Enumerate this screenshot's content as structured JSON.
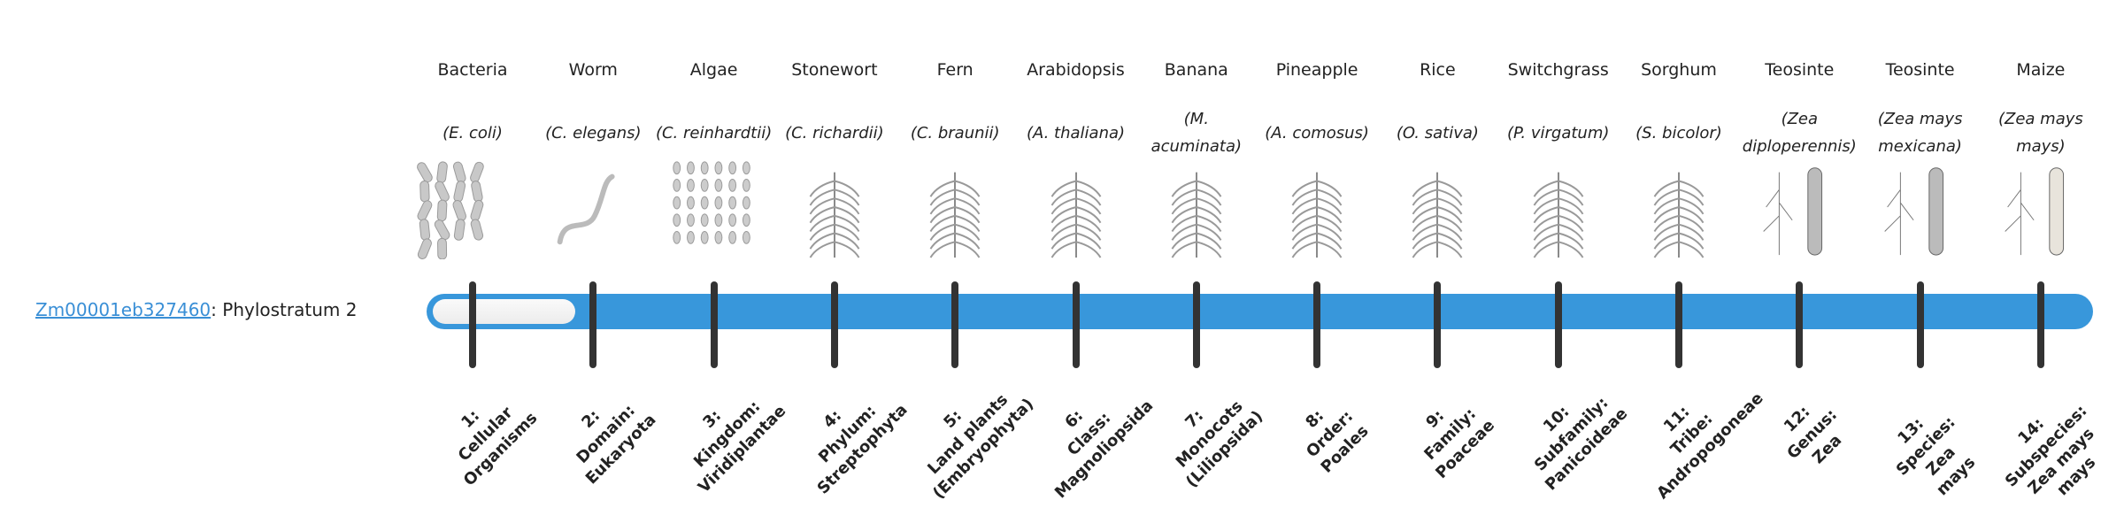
{
  "gene": {
    "id": "Zm00001eb327460",
    "separator": ":",
    "text": "Phylostratum 2",
    "phylostratum": 2,
    "total_strata": 14
  },
  "colors": {
    "bar": "#3897db",
    "fill": "#f2f2f2",
    "tick": "#333333",
    "link": "#3a8fd6"
  },
  "columns": [
    {
      "name": "Bacteria",
      "species": "(E. coli)",
      "icon": "bacteria-icon",
      "label": [
        "1:",
        "Cellular",
        "Organisms"
      ]
    },
    {
      "name": "Worm",
      "species": "(C. elegans)",
      "icon": "worm-icon",
      "label": [
        "2:",
        "Domain:",
        "Eukaryota"
      ]
    },
    {
      "name": "Algae",
      "species": "(C. reinhardtii)",
      "icon": "algae-icon",
      "label": [
        "3:",
        "Kingdom:",
        "Viridiplantae"
      ]
    },
    {
      "name": "Stonewort",
      "species": "(C. richardii)",
      "icon": "stonewort-icon",
      "label": [
        "4:",
        "Phylum:",
        "Streptophyta"
      ]
    },
    {
      "name": "Fern",
      "species": "(C. braunii)",
      "icon": "fern-icon",
      "label": [
        "5:",
        "Land plants",
        "(Embryophyta)"
      ]
    },
    {
      "name": "Arabidopsis",
      "species": "(A. thaliana)",
      "icon": "arabidopsis-icon",
      "label": [
        "6:",
        "Class:",
        "Magnoliopsida"
      ]
    },
    {
      "name": "Banana",
      "species": "(M. acuminata)",
      "icon": "banana-icon",
      "label": [
        "7:",
        "Monocots",
        "(Liliopsida)"
      ]
    },
    {
      "name": "Pineapple",
      "species": "(A. comosus)",
      "icon": "pineapple-icon",
      "label": [
        "8:",
        "Order:",
        "Poales"
      ]
    },
    {
      "name": "Rice",
      "species": "(O. sativa)",
      "icon": "rice-icon",
      "label": [
        "9:",
        "Family:",
        "Poaceae"
      ]
    },
    {
      "name": "Switchgrass",
      "species": "(P. virgatum)",
      "icon": "switchgrass-icon",
      "label": [
        "10:",
        "Subfamily:",
        "Panicoideae"
      ]
    },
    {
      "name": "Sorghum",
      "species": "(S. bicolor)",
      "icon": "sorghum-icon",
      "label": [
        "11:",
        "Tribe:",
        "Andropogoneae"
      ]
    },
    {
      "name": "Teosinte",
      "species": "(Zea diploperennis)",
      "icon": "teosinte-icon",
      "label": [
        "12:",
        "Genus:",
        "Zea"
      ]
    },
    {
      "name": "Teosinte",
      "species": "(Zea mays mexicana)",
      "icon": "teosinte-icon",
      "label": [
        "13:",
        "Species:",
        "Zea",
        "mays"
      ]
    },
    {
      "name": "Maize",
      "species": "(Zea mays mays)",
      "icon": "maize-icon",
      "label": [
        "14:",
        "Subspecies:",
        "Zea mays",
        "mays"
      ]
    }
  ]
}
